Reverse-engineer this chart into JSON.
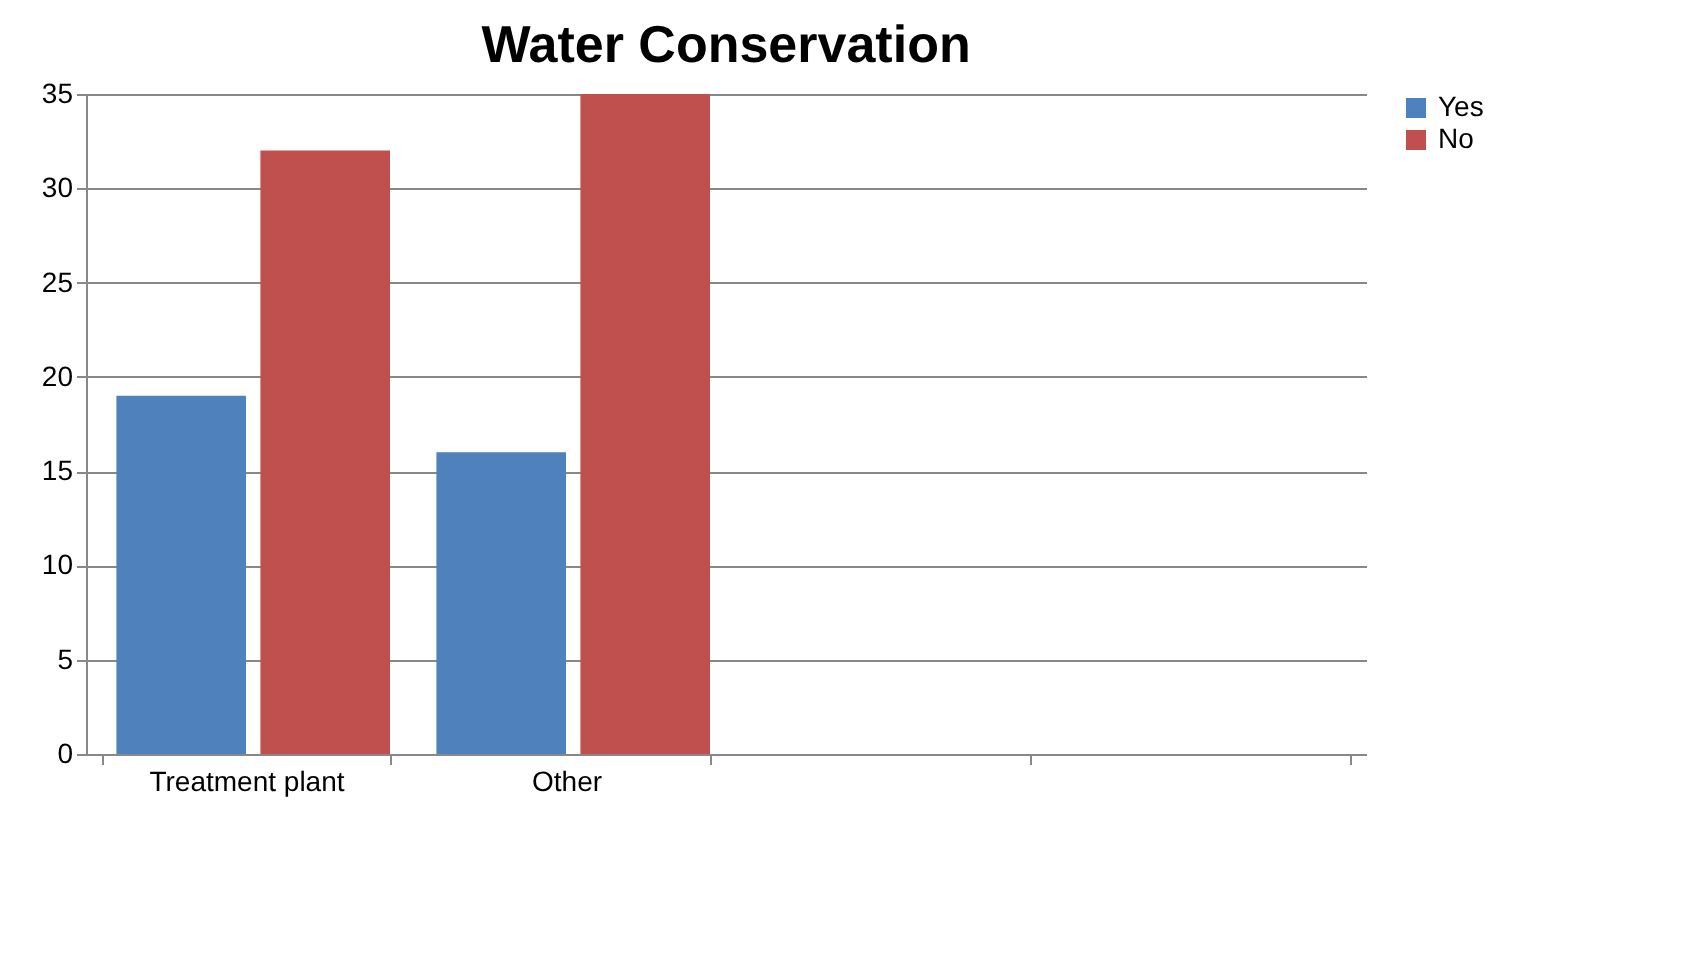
{
  "chart_data": {
    "type": "bar",
    "title": "Water Conservation",
    "categories": [
      "Treatment plant",
      "Other",
      null,
      null
    ],
    "series": [
      {
        "name": "Yes",
        "color": "#4f81bd",
        "values": [
          19,
          16,
          null,
          null
        ]
      },
      {
        "name": "No",
        "color": "#c0504d",
        "values": [
          32,
          35,
          null,
          null
        ]
      }
    ],
    "ylim": [
      0,
      35
    ],
    "yticks": [
      0,
      5,
      10,
      15,
      20,
      25,
      30,
      35
    ],
    "grid": "y",
    "legend": "right"
  }
}
